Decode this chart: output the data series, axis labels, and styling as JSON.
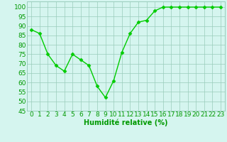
{
  "x": [
    0,
    1,
    2,
    3,
    4,
    5,
    6,
    7,
    8,
    9,
    10,
    11,
    12,
    13,
    14,
    15,
    16,
    17,
    18,
    19,
    20,
    21,
    22,
    23
  ],
  "y": [
    88,
    86,
    75,
    69,
    66,
    75,
    72,
    69,
    58,
    52,
    61,
    76,
    86,
    92,
    93,
    98,
    100,
    100,
    100,
    100,
    100,
    100,
    100,
    100
  ],
  "xlabel": "Humidité relative (%)",
  "ylim": [
    45,
    103
  ],
  "yticks": [
    45,
    50,
    55,
    60,
    65,
    70,
    75,
    80,
    85,
    90,
    95,
    100
  ],
  "line_color": "#00cc00",
  "marker_color": "#00cc00",
  "bg_color": "#d5f5ef",
  "grid_color": "#99ccbb",
  "tick_label_color": "#009900",
  "xlabel_color": "#009900",
  "xlabel_fontsize": 7,
  "tick_fontsize": 6.5
}
